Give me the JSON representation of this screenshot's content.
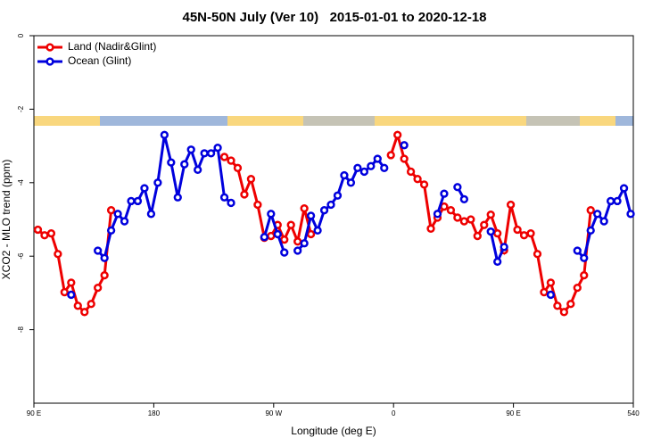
{
  "chart_data": {
    "type": "line",
    "title": "45N-50N July (Ver 10)   2015-01-01 to 2020-12-18",
    "xlabel": "Longitude (deg E)",
    "ylabel": "XCO2 - MLO trend (ppm)",
    "x": [
      93,
      98,
      103,
      108,
      113,
      118,
      123,
      128,
      133,
      138,
      143,
      148,
      153,
      158,
      163,
      168,
      173,
      178,
      183,
      188,
      193,
      198,
      203,
      208,
      213,
      218,
      223,
      228,
      233,
      238,
      243,
      248,
      253,
      258,
      263,
      268,
      273,
      278,
      283,
      288,
      293,
      298,
      303,
      308,
      313,
      318,
      323,
      328,
      333,
      338,
      343,
      348,
      353,
      358,
      363,
      368,
      373,
      378,
      383,
      388,
      393,
      398,
      403,
      408,
      413,
      418,
      423,
      428,
      433,
      438,
      443,
      448,
      453,
      458,
      463,
      468,
      473,
      478,
      483,
      488,
      493,
      498,
      503,
      508,
      513,
      518,
      523,
      528,
      533,
      538
    ],
    "series": [
      {
        "name": "Land (Nadir&Glint)",
        "color": "#ee0000",
        "values": [
          -5.28,
          -5.43,
          -5.38,
          -5.94,
          -6.98,
          -6.72,
          -7.35,
          -7.52,
          -7.3,
          -6.86,
          -6.52,
          -4.75,
          null,
          null,
          null,
          null,
          null,
          null,
          null,
          null,
          null,
          null,
          null,
          null,
          null,
          null,
          null,
          null,
          -3.3,
          -3.4,
          -3.6,
          -4.32,
          -3.9,
          -4.6,
          -5.5,
          -5.45,
          -5.15,
          -5.55,
          -5.15,
          -5.6,
          -4.7,
          -5.4,
          null,
          null,
          null,
          null,
          null,
          null,
          null,
          null,
          null,
          null,
          null,
          -3.25,
          -2.7,
          -3.35,
          -3.7,
          -3.9,
          -4.05,
          -5.25,
          -4.95,
          -4.65,
          -4.75,
          -4.95,
          -5.05,
          -5.0,
          -5.45,
          -5.15,
          -4.87,
          -5.38,
          -5.84,
          -4.6,
          -5.28,
          -5.43,
          -5.38,
          -5.94,
          -6.98,
          -6.72,
          -7.35,
          -7.52,
          -7.3,
          -6.86,
          -6.52,
          -4.75,
          null,
          null,
          null,
          null,
          null,
          null
        ]
      },
      {
        "name": "Ocean (Glint)",
        "color": "#0000dd",
        "values": [
          null,
          null,
          null,
          null,
          null,
          -7.05,
          null,
          null,
          null,
          -5.85,
          -6.05,
          -5.3,
          -4.85,
          -5.05,
          -4.5,
          -4.5,
          -4.15,
          -4.85,
          -4.0,
          -2.7,
          -3.45,
          -4.4,
          -3.5,
          -3.1,
          -3.65,
          -3.2,
          -3.2,
          -3.05,
          -4.4,
          -4.55,
          null,
          null,
          null,
          null,
          -5.48,
          -4.85,
          -5.4,
          -5.9,
          null,
          -5.85,
          -5.65,
          -4.9,
          -5.3,
          -4.75,
          -4.6,
          -4.35,
          -3.8,
          -4.0,
          -3.6,
          -3.7,
          -3.55,
          -3.35,
          -3.6,
          null,
          null,
          -2.98,
          null,
          null,
          null,
          null,
          -4.85,
          -4.3,
          null,
          -4.12,
          -4.45,
          null,
          null,
          null,
          -5.33,
          -6.15,
          -5.75,
          null,
          null,
          null,
          null,
          null,
          null,
          -7.05,
          null,
          null,
          null,
          -5.85,
          -6.05,
          -5.3,
          -4.85,
          -5.05,
          -4.5,
          -4.5,
          -4.15,
          -4.85
        ]
      }
    ],
    "xlim": [
      90,
      540
    ],
    "xticks": [
      {
        "value": 90,
        "label": "90 E"
      },
      180,
      {
        "value": 270,
        "label": "90 W"
      },
      {
        "value": 360,
        "label": "0"
      },
      {
        "value": 450,
        "label": "90 E"
      },
      540
    ],
    "ylim": [
      -10,
      0
    ],
    "yticks": [
      0,
      -2,
      -4,
      -6,
      -8
    ],
    "legend": "upper left"
  }
}
